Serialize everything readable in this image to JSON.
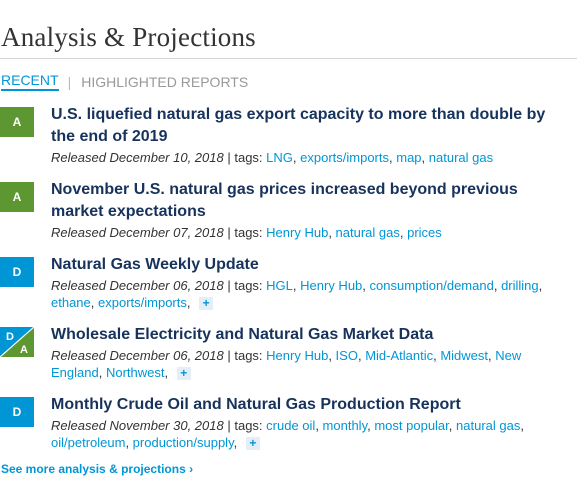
{
  "section_title": "Analysis & Projections",
  "tabs": {
    "recent": "RECENT",
    "separator": "|",
    "highlighted": "HIGHLIGHTED REPORTS"
  },
  "colors": {
    "accent": "#0096d6",
    "title": "#17335c",
    "badge_a": "#5d9732",
    "badge_d": "#0096d6"
  },
  "items": [
    {
      "badge": "A",
      "title": "U.S. liquefied natural gas export capacity to more than double by the end of 2019",
      "released": "Released December 10, 2018",
      "tags_label": "| tags:",
      "tags": [
        "LNG",
        "exports/imports",
        "map",
        "natural gas"
      ],
      "more": ""
    },
    {
      "badge": "A",
      "title": "November U.S. natural gas prices increased beyond previous market expectations",
      "released": "Released December 07, 2018",
      "tags_label": "| tags:",
      "tags": [
        "Henry Hub",
        "natural gas",
        "prices"
      ],
      "more": ""
    },
    {
      "badge": "D",
      "title": "Natural Gas Weekly Update",
      "released": "Released December 06, 2018",
      "tags_label": "| tags:",
      "tags": [
        "HGL",
        "Henry Hub",
        "consumption/demand",
        "drilling",
        "ethane",
        "exports/imports"
      ],
      "more": "+"
    },
    {
      "badge_top": "D",
      "badge_bottom": "A",
      "title": "Wholesale Electricity and Natural Gas Market Data",
      "released": "Released December 06, 2018",
      "tags_label": "| tags:",
      "tags": [
        "Henry Hub",
        "ISO",
        "Mid-Atlantic",
        "Midwest",
        "New England",
        "Northwest"
      ],
      "more": "+"
    },
    {
      "badge": "D",
      "title": "Monthly Crude Oil and Natural Gas Production Report",
      "released": "Released November 30, 2018",
      "tags_label": "| tags:",
      "tags": [
        "crude oil",
        "monthly",
        "most popular",
        "natural gas",
        "oil/petroleum",
        "production/supply"
      ],
      "more": "+"
    }
  ],
  "see_more": "See more analysis & projections ›"
}
